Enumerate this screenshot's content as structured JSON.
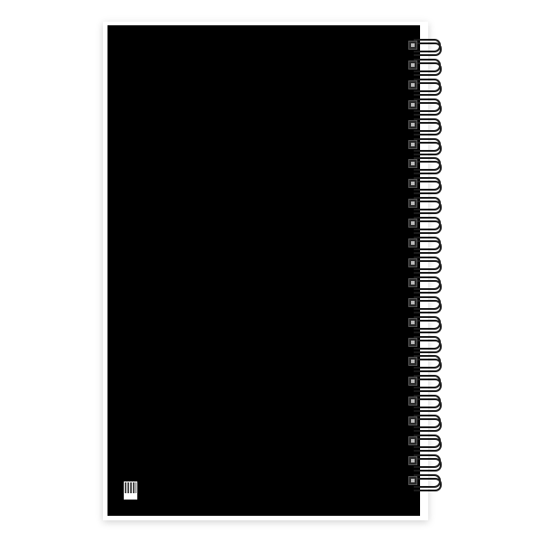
{
  "product": {
    "cover_color": "#000000",
    "background_color": "#ffffff",
    "spiral_color": "#1a1a1a",
    "spiral_ring_count": 23,
    "label_icon": "qr-code-icon"
  }
}
